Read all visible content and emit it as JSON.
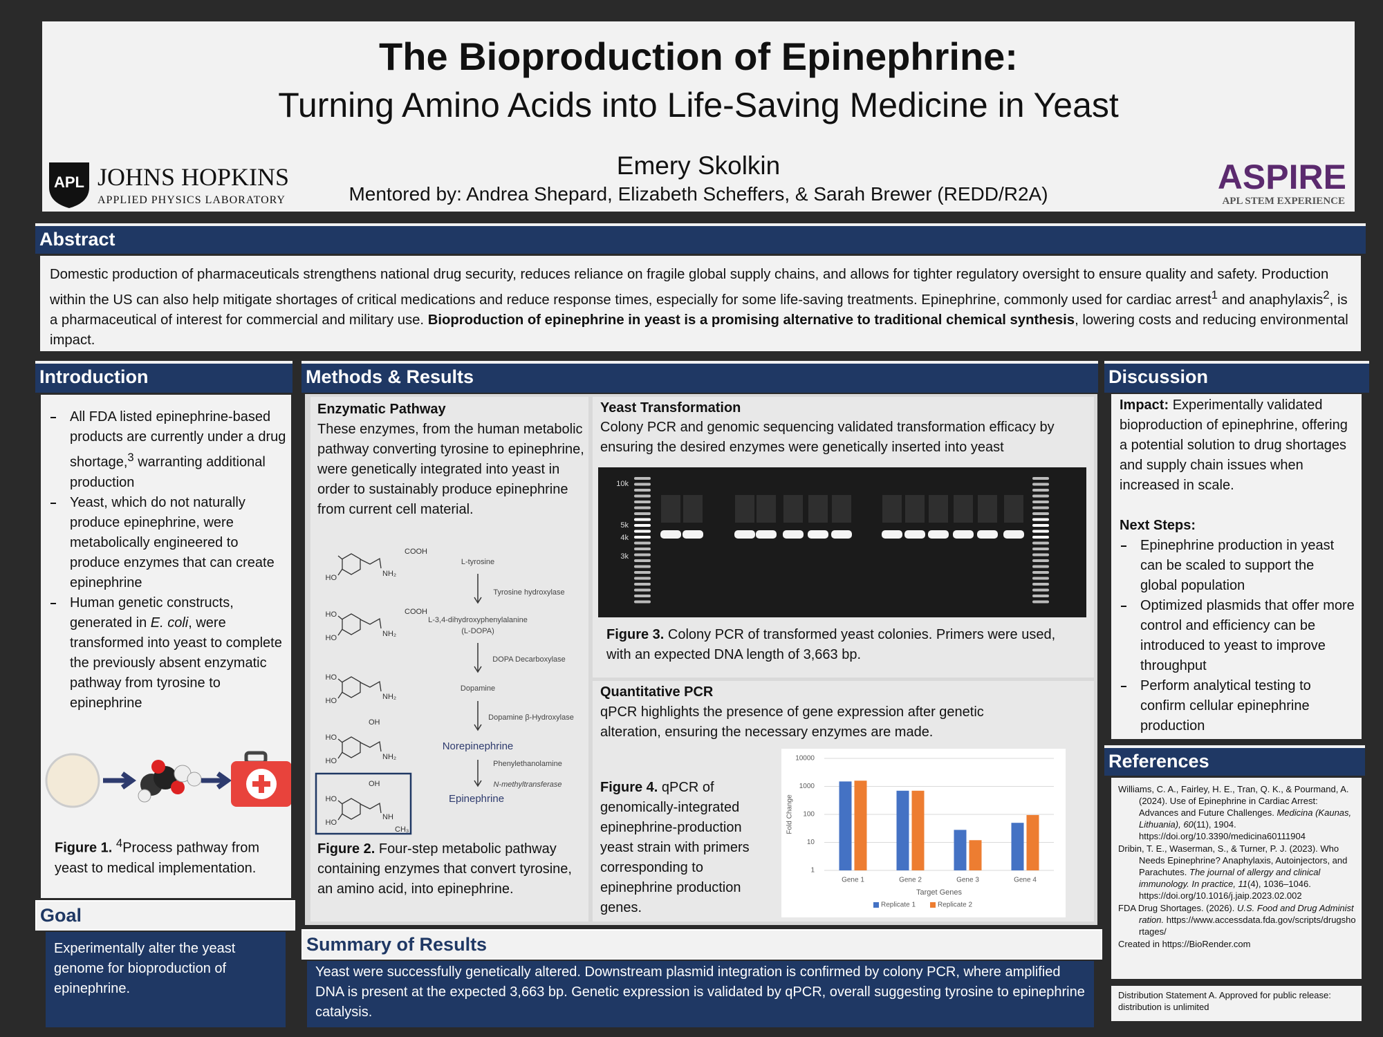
{
  "header": {
    "title": "The Bioproduction of Epinephrine:",
    "subtitle": "Turning Amino Acids into Life-Saving Medicine in Yeast",
    "author": "Emery Skolkin",
    "mentors": "Mentored by: Andrea Shepard, Elizabeth Scheffers, & Sarah Brewer (REDD/R2A)",
    "logo_left": {
      "badge": "APL",
      "name": "JOHNS HOPKINS",
      "tagline": "APPLIED PHYSICS LABORATORY"
    },
    "logo_right": {
      "name": "ASPIRE",
      "tagline": "APL STEM EXPERIENCE"
    }
  },
  "abstract": {
    "heading": "Abstract",
    "body": [
      "Domestic production of pharmaceuticals strengthens national drug security, reduces reliance on fragile global supply chains, and allows for tighter regulatory oversight to ensure quality and safety. Production within the US can also help mitigate shortages of critical medications and reduce response times, especially for some life-saving treatments. Epinephrine, commonly used for cardiac arrest",
      "1",
      " and anaphylaxis",
      "2",
      ", is a pharmaceutical of interest for commercial and military use. ",
      "Bioproduction of epinephrine in yeast is a promising alternative to traditional chemical synthesis",
      ", lowering costs and reducing environmental impact."
    ]
  },
  "introduction": {
    "heading": "Introduction",
    "bullets": [
      [
        "All FDA listed epinephrine-based products are currently under a drug shortage,",
        "3",
        " warranting additional production"
      ],
      [
        "Yeast, which do not naturally produce epinephrine, were metabolically engineered to produce enzymes that can create epinephrine"
      ],
      [
        "Human genetic constructs, generated in ",
        "E. coli",
        ", were transformed into yeast to complete the previously absent enzymatic pathway from tyrosine to epinephrine"
      ]
    ],
    "figure1": {
      "label": "Figure 1.",
      "ref": "4",
      "text": "Process pathway from yeast to medical implementation."
    }
  },
  "goal": {
    "heading": "Goal",
    "text": "Experimentally alter the yeast genome for bioproduction of epinephrine."
  },
  "methods": {
    "heading": "Methods & Results",
    "enzymatic": {
      "title": "Enzymatic Pathway",
      "text": "These enzymes, from the human metabolic pathway converting tyrosine to epinephrine, were genetically integrated into yeast in order to sustainably produce epinephrine from current cell material.",
      "pathway": {
        "compounds": [
          "L-tyrosine",
          "L-3,4-dihydroxyphenylalanine",
          "(L-DOPA)",
          "Dopamine",
          "Norepinephrine",
          "Epinephrine"
        ],
        "enzymes": [
          "Tyrosine hydroxylase",
          "DOPA Decarboxylase",
          "Dopamine β-Hydroxylase",
          "Phenylethanolamine",
          "N-methyltransferase"
        ],
        "structures": [
          [
            "HO",
            "COOH",
            "NH₂"
          ],
          [
            "HO",
            "HO",
            "COOH",
            "NH₂"
          ],
          [
            "HO",
            "HO",
            "NH₂"
          ],
          [
            "HO",
            "HO",
            "OH",
            "NH₂"
          ],
          [
            "HO",
            "HO",
            "OH",
            "NH",
            "CH₃"
          ]
        ]
      },
      "figure2": {
        "label": "Figure 2.",
        "text": "Four-step metabolic pathway containing enzymes that convert tyrosine, an amino acid, into epinephrine."
      }
    },
    "transformation": {
      "title": "Yeast Transformation",
      "text": "Colony PCR and genomic sequencing validated transformation efficacy by ensuring the desired enzymes were genetically inserted into yeast",
      "gel_labels": [
        "10k",
        "5k",
        "4k",
        "3k"
      ],
      "figure3": {
        "label": "Figure 3.",
        "text": "Colony PCR of transformed yeast colonies. Primers were used, with an expected DNA length of 3,663 bp."
      }
    },
    "qpcr": {
      "title": "Quantitative PCR",
      "text": "qPCR highlights the presence of gene expression after genetic alteration, ensuring the necessary enzymes are made.",
      "figure4": {
        "label": "Figure 4.",
        "text": "qPCR of genomically-integrated epinephrine-production yeast strain with primers corresponding to epinephrine production genes."
      }
    }
  },
  "summary": {
    "heading": "Summary of Results",
    "text": "Yeast were successfully genetically altered. Downstream plasmid integration is confirmed by colony PCR, where amplified DNA is present at the expected 3,663 bp. Genetic expression is validated by qPCR, overall suggesting tyrosine to epinephrine catalysis."
  },
  "discussion": {
    "heading": "Discussion",
    "impact_label": "Impact:",
    "impact_text": "Experimentally validated bioproduction of epinephrine, offering a potential solution to drug shortages and supply chain issues when increased in scale.",
    "next_label": "Next Steps:",
    "bullets": [
      "Epinephrine production in yeast can be scaled to support the global population",
      "Optimized plasmids that offer more control and efficiency can be introduced to yeast to improve throughput",
      "Perform analytical testing to confirm cellular epinephrine production"
    ]
  },
  "references": {
    "heading": "References",
    "entries": [
      [
        "Williams, C. A., Fairley, H. E., Tran, Q. K., & Pourmand, A. (2024). Use of Epinephrine in Cardiac Arrest: Advances and Future Challenges. ",
        "Medicina (Kaunas, Lithuania), 60",
        "(11), 1904. https://doi.org/10.3390/medicina60111904"
      ],
      [
        "Dribin, T. E., Waserman, S., & Turner, P. J. (2023). Who Needs Epinephrine? Anaphylaxis, Autoinjectors, and Parachutes. ",
        "The journal of allergy and clinical immunology. In practice, 11",
        "(4), 1036–1046. https://doi.org/10.1016/j.jaip.2023.02.002"
      ],
      [
        "FDA Drug Shortages. (2026). ",
        "U.S. Food and Drug Administration.",
        " https://www.accessdata.fda.gov/scripts/drugshortages/"
      ],
      [
        "Created in  https://BioRender.com"
      ]
    ],
    "distribution": "Distribution Statement A. Approved for public release: distribution is unlimited"
  },
  "chart_data": {
    "type": "bar",
    "x_label": "Target Genes",
    "y_label": "Fold Change",
    "categories": [
      "Gene 1",
      "Gene 2",
      "Gene 3",
      "Gene 4"
    ],
    "series": [
      {
        "name": "Replicate 1",
        "color": "#4472c4",
        "values": [
          1500,
          700,
          28,
          50
        ]
      },
      {
        "name": "Replicate 2",
        "color": "#ed7d31",
        "values": [
          1600,
          700,
          12,
          95
        ]
      }
    ],
    "ylim": [
      1,
      10000
    ],
    "yticks": [
      1,
      10,
      100,
      1000,
      10000
    ],
    "log_scale": true,
    "grid": true,
    "legend": "bottom"
  }
}
